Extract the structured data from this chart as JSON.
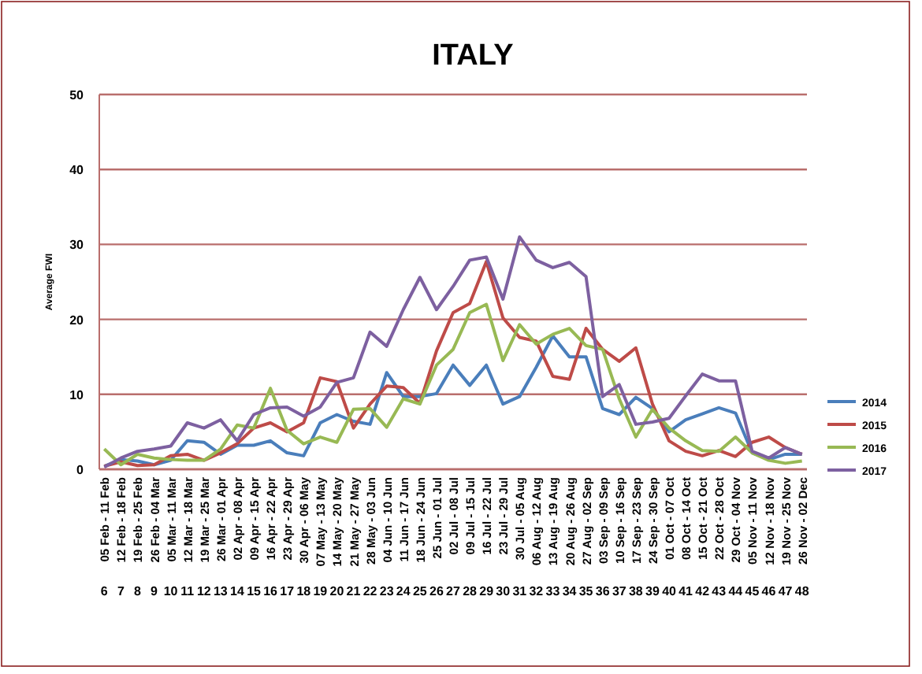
{
  "chart_data": {
    "type": "line",
    "title": "ITALY",
    "ylabel": "Average FWI",
    "categories": [
      "05 Feb - 11 Feb\n6",
      "12 Feb - 18 Feb\n7",
      "19 Feb - 25 Feb\n8",
      "26 Feb - 04 Mar\n9",
      "05 Mar - 11 Mar\n10",
      "12 Mar - 18 Mar\n11",
      "19 Mar - 25 Mar\n12",
      "26 Mar - 01 Apr\n13",
      "02 Apr - 08 Apr\n14",
      "09 Apr - 15 Apr\n15",
      "16 Apr - 22 Apr\n16",
      "23 Apr - 29 Apr\n17",
      "30 Apr - 06 May\n18",
      "07 May - 13 May\n19",
      "14 May - 20 May\n20",
      "21 May - 27 May\n21",
      "28 May - 03 Jun\n22",
      "04 Jun - 10 Jun\n23",
      "11 Jun - 17 Jun\n24",
      "18 Jun - 24 Jun\n25",
      "25 Jun - 01 Jul\n26",
      "02 Jul - 08 Jul\n27",
      "09 Jul - 15 Jul\n28",
      "16 Jul - 22 Jul\n29",
      "23 Jul - 29 Jul\n30",
      "30 Jul - 05 Aug\n31",
      "06 Aug - 12 Aug\n32",
      "13 Aug - 19 Aug\n33",
      "20 Aug - 26 Aug\n34",
      "27 Aug - 02 Sep\n35",
      "03 Sep - 09 Sep\n36",
      "10 Sep - 16 Sep\n37",
      "17 Sep - 23 Sep\n38",
      "24 Sep - 30 Sep\n39",
      "01 Oct - 07 Oct\n40",
      "08 Oct - 14 Oct\n41",
      "15 Oct - 21 Oct\n42",
      "22 Oct - 28 Oct\n43",
      "29 Oct - 04 Nov\n44",
      "05 Nov - 11 Nov\n45",
      "12 Nov - 18 Nov\n46",
      "19 Nov - 25 Nov\n47",
      "26 Nov - 02 Dec\n48"
    ],
    "series": [
      {
        "name": "2014",
        "color": "#4a7ebb",
        "values": [
          0.4,
          1.3,
          1.1,
          0.6,
          1.2,
          3.8,
          3.6,
          2,
          3.2,
          3.2,
          3.8,
          2.2,
          1.8,
          6.2,
          7.3,
          6.4,
          6,
          12.9,
          9.7,
          9.7,
          10.1,
          13.9,
          11.2,
          13.9,
          8.7,
          9.7,
          13.6,
          17.8,
          15,
          15,
          8.1,
          7.3,
          9.6,
          8.1,
          5,
          6.6,
          7.4,
          8.2,
          7.5,
          2.2,
          1.3,
          2,
          2
        ]
      },
      {
        "name": "2015",
        "color": "#be4b48",
        "values": [
          0.4,
          1,
          0.5,
          0.6,
          1.8,
          2,
          1.2,
          2.2,
          3.4,
          5.5,
          6.2,
          5,
          6.2,
          12.2,
          11.7,
          5.5,
          8.7,
          11.1,
          10.9,
          8.8,
          15.8,
          20.9,
          22.1,
          27.7,
          20.2,
          17.6,
          17.1,
          12.4,
          12,
          18.8,
          16,
          14.4,
          16.2,
          8.7,
          3.8,
          2.4,
          1.8,
          2.5,
          1.7,
          3.6,
          4.3,
          2.9,
          2
        ]
      },
      {
        "name": "2016",
        "color": "#98b954",
        "values": [
          2.7,
          0.6,
          2,
          1.5,
          1.3,
          1.2,
          1.2,
          2.7,
          5.9,
          5.5,
          10.8,
          5.2,
          3.4,
          4.3,
          3.6,
          8,
          8.1,
          5.6,
          9.4,
          8.7,
          13.9,
          16,
          20.9,
          22,
          14.5,
          19.3,
          16.7,
          18,
          18.8,
          16.5,
          16,
          9.4,
          4.3,
          8,
          5.5,
          3.8,
          2.5,
          2.4,
          4.3,
          2.2,
          1.2,
          0.8,
          1.1
        ]
      },
      {
        "name": "2017",
        "color": "#7d60a0",
        "values": [
          0.3,
          1.5,
          2.4,
          2.7,
          3.1,
          6.2,
          5.5,
          6.6,
          3.8,
          7.3,
          8.2,
          8.3,
          7.1,
          8.3,
          11.6,
          12.2,
          18.3,
          16.4,
          21.3,
          25.6,
          21.3,
          24.4,
          27.9,
          28.3,
          22.7,
          31,
          27.9,
          26.9,
          27.6,
          25.7,
          9.7,
          11.3,
          6,
          6.3,
          6.8,
          9.8,
          12.7,
          11.8,
          11.8,
          2.4,
          1.5,
          2.9,
          2
        ]
      }
    ],
    "ylim": [
      0,
      50
    ],
    "yticks": [
      0,
      10,
      20,
      30,
      40,
      50
    ],
    "grid": "y",
    "legend": "right",
    "marker": "none",
    "line_style": "solid"
  }
}
